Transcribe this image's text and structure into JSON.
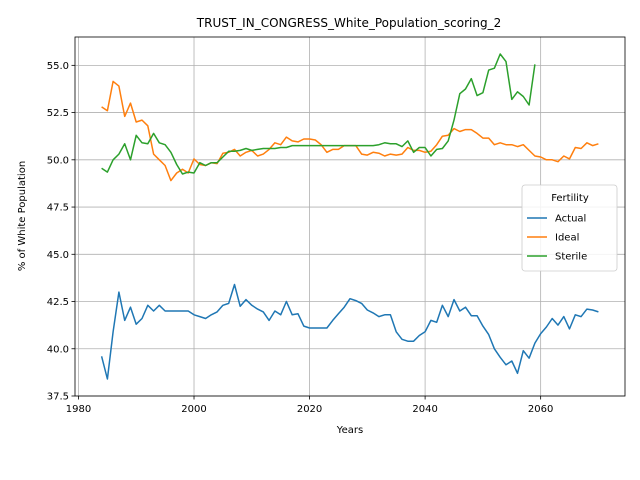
{
  "chart_data": {
    "type": "line",
    "title": "TRUST_IN_CONGRESS_White_Population_scoring_2",
    "xlabel": "Years",
    "ylabel": "% of White Population",
    "xlim": [
      1979.4,
      2074.6
    ],
    "ylim": [
      37.5,
      56.5
    ],
    "xticks": [
      1980,
      2000,
      2020,
      2040,
      2060
    ],
    "yticks": [
      37.5,
      40.0,
      42.5,
      45.0,
      47.5,
      50.0,
      52.5,
      55.0
    ],
    "ytick_labels": [
      "37.5",
      "40.0",
      "42.5",
      "45.0",
      "47.5",
      "50.0",
      "52.5",
      "55.0"
    ],
    "grid": true,
    "legend": {
      "title": "Fertility",
      "placement": "center-right"
    },
    "series": [
      {
        "name": "Actual",
        "color": "#1f77b4",
        "x": [
          1984,
          1985,
          1986,
          1987,
          1988,
          1989,
          1990,
          1991,
          1992,
          1993,
          1994,
          1995,
          1996,
          1997,
          1998,
          1999,
          2000,
          2001,
          2002,
          2003,
          2004,
          2005,
          2006,
          2007,
          2008,
          2009,
          2010,
          2011,
          2012,
          2013,
          2014,
          2015,
          2016,
          2017,
          2018,
          2019,
          2020,
          2021,
          2022,
          2023,
          2024,
          2025,
          2026,
          2027,
          2028,
          2029,
          2030,
          2031,
          2032,
          2033,
          2034,
          2035,
          2036,
          2037,
          2038,
          2039,
          2040,
          2041,
          2042,
          2043,
          2044,
          2045,
          2046,
          2047,
          2048,
          2049,
          2050,
          2051,
          2052,
          2053,
          2054,
          2055,
          2056,
          2057,
          2058,
          2059,
          2060,
          2061,
          2062,
          2063,
          2064,
          2065,
          2066,
          2067,
          2068,
          2069,
          2070
        ],
        "y": [
          39.6,
          38.4,
          40.9,
          43.0,
          41.5,
          42.2,
          41.3,
          41.6,
          42.3,
          42.0,
          42.3,
          42.0,
          42.0,
          42.0,
          42.0,
          42.0,
          41.8,
          41.7,
          41.6,
          41.8,
          41.95,
          42.3,
          42.4,
          43.4,
          42.25,
          42.6,
          42.3,
          42.1,
          41.95,
          41.5,
          42.0,
          41.8,
          42.5,
          41.8,
          41.85,
          41.2,
          41.1,
          41.1,
          41.1,
          41.1,
          41.5,
          41.85,
          42.2,
          42.65,
          42.55,
          42.4,
          42.05,
          41.9,
          41.7,
          41.8,
          41.8,
          40.9,
          40.5,
          40.4,
          40.4,
          40.7,
          40.9,
          41.5,
          41.4,
          42.3,
          41.7,
          42.6,
          42.0,
          42.2,
          41.75,
          41.75,
          41.2,
          40.75,
          40.0,
          39.55,
          39.15,
          39.35,
          38.7,
          39.9,
          39.5,
          40.3,
          40.8,
          41.15,
          41.6,
          41.25,
          41.7,
          41.05,
          41.8,
          41.7,
          42.1,
          42.05,
          41.95
        ]
      },
      {
        "name": "Ideal",
        "color": "#ff7f0e",
        "x": [
          1984,
          1985,
          1986,
          1987,
          1988,
          1989,
          1990,
          1991,
          1992,
          1993,
          1994,
          1995,
          1996,
          1997,
          1998,
          1999,
          2000,
          2001,
          2002,
          2003,
          2004,
          2005,
          2006,
          2007,
          2008,
          2009,
          2010,
          2011,
          2012,
          2013,
          2014,
          2015,
          2016,
          2017,
          2018,
          2019,
          2020,
          2021,
          2022,
          2023,
          2024,
          2025,
          2026,
          2027,
          2028,
          2029,
          2030,
          2031,
          2032,
          2033,
          2034,
          2035,
          2036,
          2037,
          2038,
          2039,
          2040,
          2041,
          2042,
          2043,
          2044,
          2045,
          2046,
          2047,
          2048,
          2049,
          2050,
          2051,
          2052,
          2053,
          2054,
          2055,
          2056,
          2057,
          2058,
          2059,
          2060,
          2061,
          2062,
          2063,
          2064,
          2065,
          2066,
          2067,
          2068,
          2069,
          2070
        ],
        "y": [
          52.8,
          52.6,
          54.15,
          53.9,
          52.3,
          53.0,
          52.0,
          52.1,
          51.8,
          50.3,
          50.0,
          49.7,
          48.9,
          49.3,
          49.5,
          49.3,
          50.05,
          49.75,
          49.7,
          49.85,
          49.8,
          50.35,
          50.4,
          50.55,
          50.2,
          50.4,
          50.5,
          50.2,
          50.3,
          50.55,
          50.9,
          50.8,
          51.2,
          51.0,
          50.95,
          51.1,
          51.1,
          51.05,
          50.8,
          50.4,
          50.55,
          50.55,
          50.75,
          50.75,
          50.75,
          50.3,
          50.25,
          50.4,
          50.35,
          50.2,
          50.3,
          50.25,
          50.3,
          50.65,
          50.5,
          50.5,
          50.4,
          50.45,
          50.8,
          51.25,
          51.3,
          51.65,
          51.5,
          51.6,
          51.6,
          51.4,
          51.15,
          51.15,
          50.8,
          50.9,
          50.8,
          50.8,
          50.7,
          50.8,
          50.5,
          50.2,
          50.15,
          50.0,
          50.0,
          49.9,
          50.2,
          50.05,
          50.65,
          50.6,
          50.9,
          50.75,
          50.85
        ]
      },
      {
        "name": "Sterile",
        "color": "#2ca02c",
        "x": [
          1984,
          1985,
          1986,
          1987,
          1988,
          1989,
          1990,
          1991,
          1992,
          1993,
          1994,
          1995,
          1996,
          1997,
          1998,
          1999,
          2000,
          2001,
          2002,
          2003,
          2004,
          2005,
          2006,
          2007,
          2008,
          2009,
          2010,
          2011,
          2012,
          2013,
          2014,
          2015,
          2016,
          2017,
          2018,
          2019,
          2020,
          2021,
          2022,
          2023,
          2024,
          2025,
          2026,
          2027,
          2028,
          2029,
          2030,
          2031,
          2032,
          2033,
          2034,
          2035,
          2036,
          2037,
          2038,
          2039,
          2040,
          2041,
          2042,
          2043,
          2044,
          2045,
          2046,
          2047,
          2048,
          2049,
          2050,
          2051,
          2052,
          2053,
          2054,
          2055,
          2056,
          2057,
          2058,
          2059
        ],
        "y": [
          49.55,
          49.35,
          50.0,
          50.3,
          50.85,
          50.0,
          51.3,
          50.9,
          50.85,
          51.4,
          50.9,
          50.8,
          50.4,
          49.75,
          49.25,
          49.35,
          49.3,
          49.85,
          49.7,
          49.85,
          49.85,
          50.15,
          50.45,
          50.45,
          50.5,
          50.6,
          50.5,
          50.55,
          50.6,
          50.6,
          50.6,
          50.65,
          50.65,
          50.75,
          50.75,
          50.75,
          50.75,
          50.75,
          50.75,
          50.75,
          50.75,
          50.75,
          50.75,
          50.75,
          50.75,
          50.75,
          50.75,
          50.75,
          50.8,
          50.9,
          50.85,
          50.85,
          50.7,
          51.0,
          50.4,
          50.65,
          50.65,
          50.2,
          50.55,
          50.6,
          51.0,
          52.1,
          53.5,
          53.75,
          54.3,
          53.4,
          53.55,
          54.75,
          54.85,
          55.6,
          55.2,
          53.2,
          53.6,
          53.35,
          52.9,
          55.05
        ]
      }
    ]
  }
}
